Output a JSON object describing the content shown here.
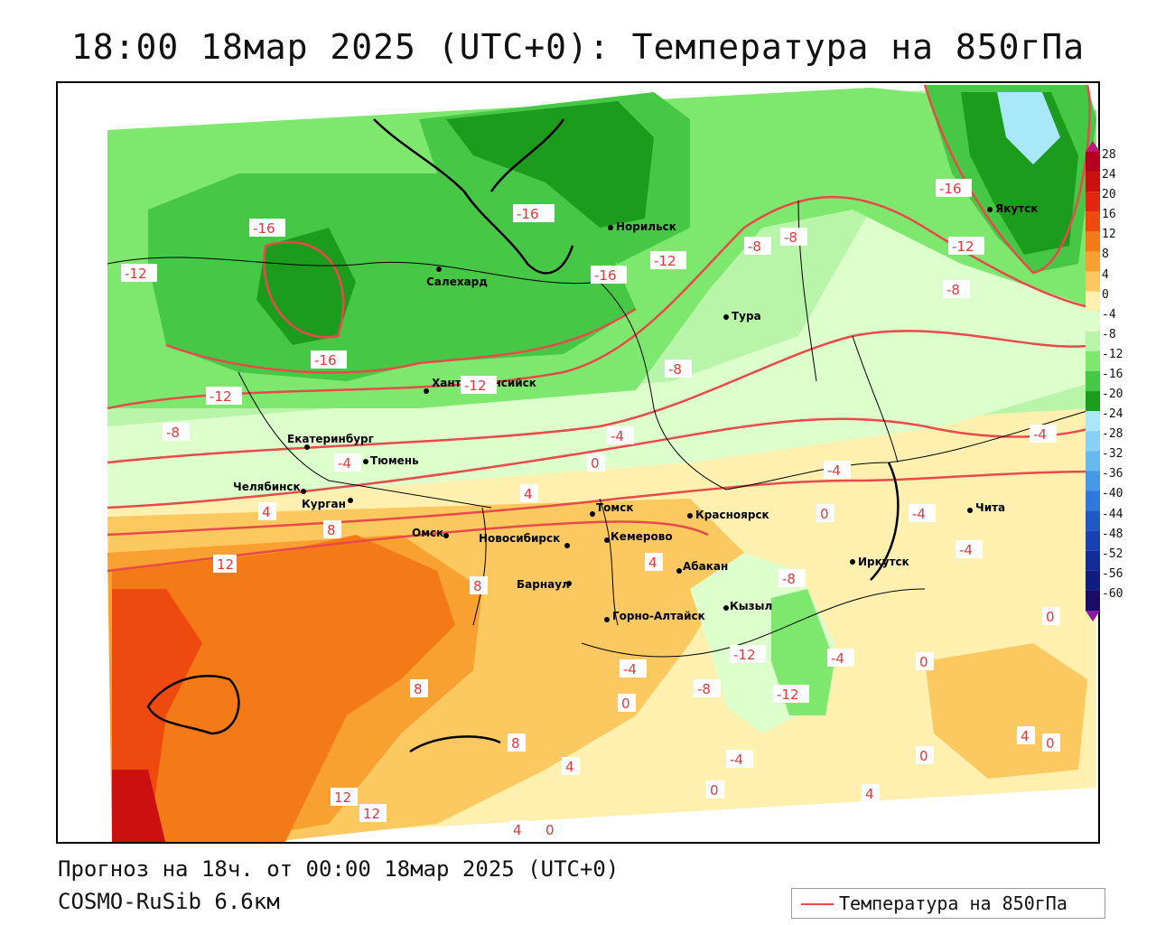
{
  "title": "18:00 18мар 2025 (UTC+0): Температура на 850гПа",
  "footer": {
    "forecast": "Прогноз на 18ч. от 00:00 18мар 2025 (UTC+0)",
    "model": "COSMO-RuSib 6.6км"
  },
  "legend": {
    "line_label": "Температура на 850гПа",
    "line_color": "#e84a4a"
  },
  "color_scale": {
    "labels": [
      "28",
      "24",
      "20",
      "16",
      "12",
      "8",
      "4",
      "0",
      "-4",
      "-8",
      "-12",
      "-16",
      "-20",
      "-24",
      "-28",
      "-32",
      "-36",
      "-40",
      "-44",
      "-48",
      "-52",
      "-56",
      "-60"
    ],
    "colors": [
      "#b4001e",
      "#cc1010",
      "#e02810",
      "#ee4a10",
      "#f47a18",
      "#f8a030",
      "#fcc860",
      "#fff0b0",
      "#ddffcc",
      "#b8f5a8",
      "#7ee86e",
      "#46c846",
      "#1c9c1c",
      "#a8e8f8",
      "#88d0f4",
      "#68b8f0",
      "#4898e8",
      "#3078dc",
      "#2058c8",
      "#1840b0",
      "#142c98",
      "#101c80",
      "#180c68"
    ]
  },
  "cities": [
    {
      "name": "Норильск"
    },
    {
      "name": "Якутск"
    },
    {
      "name": "Салехард"
    },
    {
      "name": "Тура"
    },
    {
      "name": "Ханты-Мансийск"
    },
    {
      "name": "Екатеринбург"
    },
    {
      "name": "Тюмень"
    },
    {
      "name": "Челябинск"
    },
    {
      "name": "Курган"
    },
    {
      "name": "Омск"
    },
    {
      "name": "Новосибирск"
    },
    {
      "name": "Томск"
    },
    {
      "name": "Красноярск"
    },
    {
      "name": "Кемерово"
    },
    {
      "name": "Барнаул"
    },
    {
      "name": "Абакан"
    },
    {
      "name": "Иркутск"
    },
    {
      "name": "Чита"
    },
    {
      "name": "Кызыл"
    },
    {
      "name": "Горно-Алтайск"
    }
  ],
  "isotherm_labels": [
    "-16",
    "-16",
    "-12",
    "-16",
    "-16",
    "-12",
    "-8",
    "-8",
    "-16",
    "-12",
    "-8",
    "-12",
    "-12",
    "-8",
    "-8",
    "-4",
    "-4",
    "0",
    "4",
    "-4",
    "0",
    "-4",
    "4",
    "8",
    "12",
    "8",
    "4",
    "-8",
    "-12",
    "-4",
    "-12",
    "-8",
    "-4",
    "0",
    "0",
    "8",
    "8",
    "4",
    "0",
    "12",
    "12",
    "4",
    "0",
    "4",
    "0",
    "4",
    "0",
    "-4",
    "0",
    "-4",
    "-4"
  ]
}
